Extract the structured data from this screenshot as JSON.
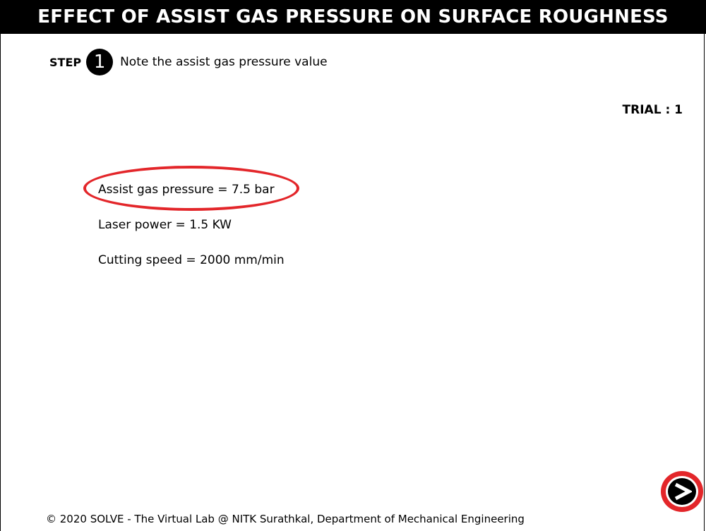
{
  "header": {
    "title": "EFFECT OF ASSIST GAS PRESSURE ON SURFACE ROUGHNESS"
  },
  "step": {
    "label": "STEP",
    "number": "1",
    "instruction": "Note the assist gas pressure value"
  },
  "trial": {
    "label": "TRIAL : 1"
  },
  "parameters": [
    {
      "text": "Assist gas pressure = 7.5 bar"
    },
    {
      "text": "Laser power = 1.5 KW"
    },
    {
      "text": "Cutting speed = 2000 mm/min"
    }
  ],
  "highlight": {
    "color": "#e3262a"
  },
  "next_button": {
    "icon": "next-arrow-icon"
  },
  "footer": {
    "text": "© 2020 SOLVE - The Virtual Lab @ NITK Surathkal, Department of Mechanical Engineering"
  }
}
